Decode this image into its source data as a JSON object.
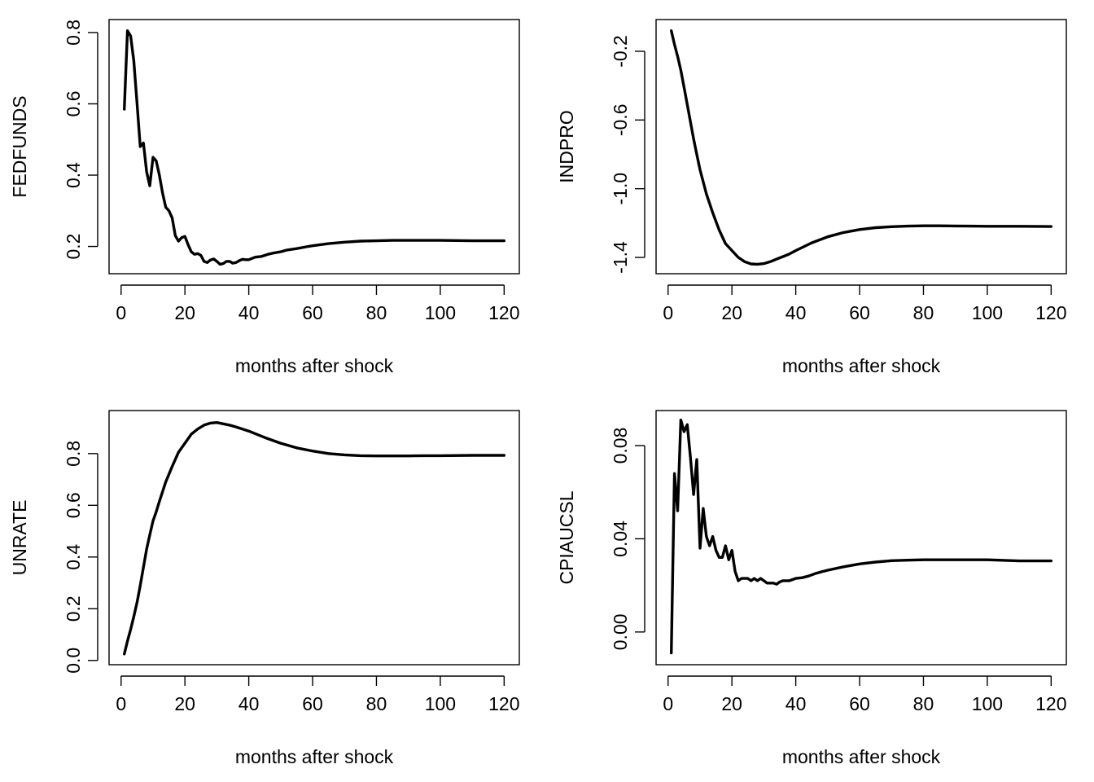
{
  "chart_data": [
    {
      "type": "line",
      "xlabel": "months after shock",
      "ylabel": "FEDFUNDS",
      "xlim": [
        1,
        120
      ],
      "ylim": [
        0.15,
        0.81
      ],
      "xticks": [
        0,
        20,
        40,
        60,
        80,
        100,
        120
      ],
      "yticks": [
        0.2,
        0.4,
        0.6,
        0.8
      ],
      "grid": false,
      "series": [
        {
          "x": [
            1,
            2,
            3,
            4,
            5,
            6,
            7,
            8,
            9,
            10,
            11,
            12,
            13,
            14,
            15,
            16,
            17,
            18,
            19,
            20,
            21,
            22,
            23,
            24,
            25,
            26,
            27,
            28,
            29,
            30,
            31,
            32,
            33,
            34,
            35,
            36,
            37,
            38,
            39,
            40,
            42,
            44,
            46,
            48,
            50,
            52,
            55,
            58,
            60,
            65,
            70,
            75,
            80,
            85,
            90,
            95,
            100,
            110,
            120
          ],
          "values": [
            0.585,
            0.805,
            0.79,
            0.72,
            0.6,
            0.48,
            0.49,
            0.41,
            0.37,
            0.45,
            0.44,
            0.4,
            0.35,
            0.31,
            0.3,
            0.28,
            0.23,
            0.215,
            0.225,
            0.228,
            0.205,
            0.185,
            0.178,
            0.18,
            0.175,
            0.158,
            0.155,
            0.162,
            0.165,
            0.158,
            0.15,
            0.152,
            0.158,
            0.158,
            0.153,
            0.155,
            0.16,
            0.164,
            0.163,
            0.163,
            0.17,
            0.172,
            0.178,
            0.182,
            0.185,
            0.19,
            0.194,
            0.199,
            0.202,
            0.208,
            0.212,
            0.215,
            0.216,
            0.217,
            0.217,
            0.217,
            0.217,
            0.216,
            0.216
          ]
        }
      ]
    },
    {
      "type": "line",
      "xlabel": "months after shock",
      "ylabel": "INDPRO",
      "xlim": [
        1,
        120
      ],
      "ylim": [
        -1.44,
        -0.07
      ],
      "xticks": [
        0,
        20,
        40,
        60,
        80,
        100,
        120
      ],
      "yticks": [
        -1.4,
        -1.0,
        -0.6,
        -0.2
      ],
      "grid": false,
      "series": [
        {
          "x": [
            1,
            2,
            3,
            4,
            5,
            6,
            7,
            8,
            9,
            10,
            11,
            12,
            14,
            16,
            18,
            20,
            22,
            24,
            26,
            28,
            30,
            32,
            34,
            36,
            38,
            40,
            45,
            50,
            55,
            60,
            65,
            70,
            75,
            80,
            85,
            90,
            95,
            100,
            110,
            120
          ],
          "values": [
            -0.08,
            -0.16,
            -0.23,
            -0.31,
            -0.41,
            -0.51,
            -0.61,
            -0.71,
            -0.8,
            -0.89,
            -0.96,
            -1.03,
            -1.14,
            -1.24,
            -1.32,
            -1.36,
            -1.4,
            -1.425,
            -1.438,
            -1.44,
            -1.436,
            -1.425,
            -1.41,
            -1.395,
            -1.38,
            -1.36,
            -1.315,
            -1.28,
            -1.255,
            -1.238,
            -1.227,
            -1.221,
            -1.218,
            -1.216,
            -1.216,
            -1.217,
            -1.218,
            -1.219,
            -1.219,
            -1.22
          ]
        }
      ]
    },
    {
      "type": "line",
      "xlabel": "months after shock",
      "ylabel": "UNRATE",
      "xlim": [
        1,
        120
      ],
      "ylim": [
        0.02,
        0.93
      ],
      "xticks": [
        0,
        20,
        40,
        60,
        80,
        100,
        120
      ],
      "yticks": [
        0.0,
        0.2,
        0.4,
        0.6,
        0.8
      ],
      "grid": false,
      "series": [
        {
          "x": [
            1,
            2,
            3,
            4,
            5,
            6,
            7,
            8,
            9,
            10,
            11,
            12,
            14,
            16,
            18,
            20,
            22,
            24,
            26,
            28,
            30,
            32,
            34,
            36,
            40,
            45,
            50,
            55,
            60,
            65,
            70,
            75,
            80,
            85,
            90,
            95,
            100,
            110,
            120
          ],
          "values": [
            0.025,
            0.075,
            0.12,
            0.17,
            0.225,
            0.29,
            0.36,
            0.43,
            0.485,
            0.54,
            0.575,
            0.615,
            0.69,
            0.75,
            0.805,
            0.84,
            0.875,
            0.895,
            0.91,
            0.918,
            0.92,
            0.915,
            0.91,
            0.903,
            0.887,
            0.862,
            0.84,
            0.822,
            0.81,
            0.8,
            0.795,
            0.792,
            0.791,
            0.791,
            0.791,
            0.792,
            0.792,
            0.793,
            0.793
          ]
        }
      ]
    },
    {
      "type": "line",
      "xlabel": "months after shock",
      "ylabel": "CPIAUCSL",
      "xlim": [
        1,
        120
      ],
      "ylim": [
        -0.01,
        0.091
      ],
      "xticks": [
        0,
        20,
        40,
        60,
        80,
        100,
        120
      ],
      "yticks": [
        0.0,
        0.04,
        0.08
      ],
      "grid": false,
      "series": [
        {
          "x": [
            1,
            2,
            3,
            4,
            5,
            6,
            7,
            8,
            9,
            10,
            11,
            12,
            13,
            14,
            15,
            16,
            17,
            18,
            19,
            20,
            21,
            22,
            23,
            24,
            25,
            26,
            27,
            28,
            29,
            30,
            31,
            32,
            33,
            34,
            35,
            36,
            38,
            40,
            42,
            44,
            46,
            48,
            50,
            55,
            60,
            65,
            70,
            75,
            80,
            85,
            90,
            95,
            100,
            110,
            120
          ],
          "values": [
            -0.009,
            0.068,
            0.052,
            0.091,
            0.086,
            0.089,
            0.075,
            0.059,
            0.074,
            0.036,
            0.053,
            0.041,
            0.037,
            0.041,
            0.035,
            0.032,
            0.032,
            0.037,
            0.031,
            0.035,
            0.026,
            0.022,
            0.023,
            0.023,
            0.023,
            0.022,
            0.023,
            0.022,
            0.023,
            0.022,
            0.021,
            0.021,
            0.021,
            0.0205,
            0.0215,
            0.022,
            0.022,
            0.023,
            0.0233,
            0.024,
            0.025,
            0.0258,
            0.0265,
            0.028,
            0.0292,
            0.03,
            0.0306,
            0.0308,
            0.031,
            0.031,
            0.031,
            0.031,
            0.031,
            0.0305,
            0.0305
          ]
        }
      ]
    }
  ]
}
